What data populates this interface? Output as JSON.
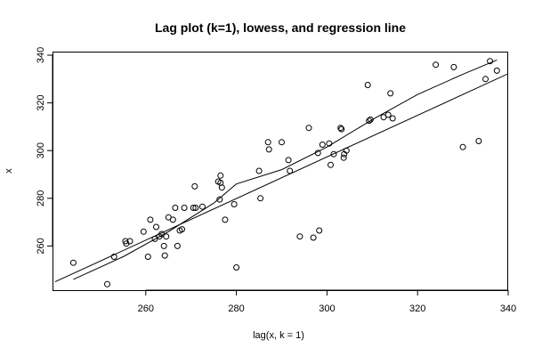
{
  "chart_data": {
    "type": "scatter",
    "title": "Lag plot (k=1), lowess, and regression line",
    "xlabel": "lag(x, k = 1)",
    "ylabel": "x",
    "xlim": [
      240,
      340
    ],
    "ylim": [
      240,
      340
    ],
    "xticks": [
      260,
      280,
      300,
      320,
      340
    ],
    "yticks": [
      260,
      280,
      300,
      320,
      340
    ],
    "grid": false,
    "points": [
      [
        244,
        253
      ],
      [
        251.5,
        244
      ],
      [
        253,
        255.5
      ],
      [
        255.5,
        262
      ],
      [
        255.7,
        261
      ],
      [
        256.5,
        262
      ],
      [
        259.5,
        266
      ],
      [
        260.5,
        255.5
      ],
      [
        261,
        271
      ],
      [
        262,
        263
      ],
      [
        262.3,
        268
      ],
      [
        263,
        264
      ],
      [
        263.5,
        265
      ],
      [
        264,
        260
      ],
      [
        264.2,
        256
      ],
      [
        264.5,
        264
      ],
      [
        265,
        272
      ],
      [
        266,
        271
      ],
      [
        266.5,
        276
      ],
      [
        267,
        260
      ],
      [
        267.5,
        266.5
      ],
      [
        268,
        267
      ],
      [
        268.5,
        276
      ],
      [
        270.5,
        276
      ],
      [
        270.8,
        285
      ],
      [
        271,
        276
      ],
      [
        272.5,
        276.5
      ],
      [
        276,
        287
      ],
      [
        276.3,
        279.5
      ],
      [
        276.5,
        286.5
      ],
      [
        276.5,
        289.5
      ],
      [
        276.8,
        284.5
      ],
      [
        277.5,
        271
      ],
      [
        279.5,
        277.5
      ],
      [
        280,
        251
      ],
      [
        285,
        291.5
      ],
      [
        285.3,
        280
      ],
      [
        287,
        303.5
      ],
      [
        287.2,
        300.5
      ],
      [
        290,
        303.5
      ],
      [
        291.5,
        296
      ],
      [
        291.8,
        291.5
      ],
      [
        294,
        264
      ],
      [
        296,
        309.5
      ],
      [
        297,
        263.5
      ],
      [
        298,
        299
      ],
      [
        298.3,
        266.5
      ],
      [
        299,
        302.5
      ],
      [
        300.5,
        303
      ],
      [
        300.8,
        294
      ],
      [
        301.5,
        298.5
      ],
      [
        303,
        309.5
      ],
      [
        303.2,
        309
      ],
      [
        303.7,
        297
      ],
      [
        303.8,
        298.5
      ],
      [
        304.3,
        300
      ],
      [
        309,
        327.5
      ],
      [
        309.3,
        312.5
      ],
      [
        309.6,
        313
      ],
      [
        312.5,
        314
      ],
      [
        313.5,
        315
      ],
      [
        314,
        324
      ],
      [
        314.5,
        313.5
      ],
      [
        324,
        336
      ],
      [
        328,
        335
      ],
      [
        330,
        301.5
      ],
      [
        333.5,
        304
      ],
      [
        335,
        330
      ],
      [
        336,
        337.5
      ],
      [
        337.5,
        333.5
      ]
    ],
    "series": [
      {
        "values": [
          [
            240,
            245
          ],
          [
            342,
            334
          ]
        ]
      },
      {
        "values": [
          [
            244,
            246
          ],
          [
            255,
            255.5
          ],
          [
            265,
            266
          ],
          [
            275,
            278
          ],
          [
            280,
            286
          ],
          [
            290,
            292
          ],
          [
            300,
            301.5
          ],
          [
            310,
            313
          ],
          [
            320,
            323.5
          ],
          [
            330,
            332
          ],
          [
            337.5,
            338
          ]
        ]
      }
    ]
  }
}
